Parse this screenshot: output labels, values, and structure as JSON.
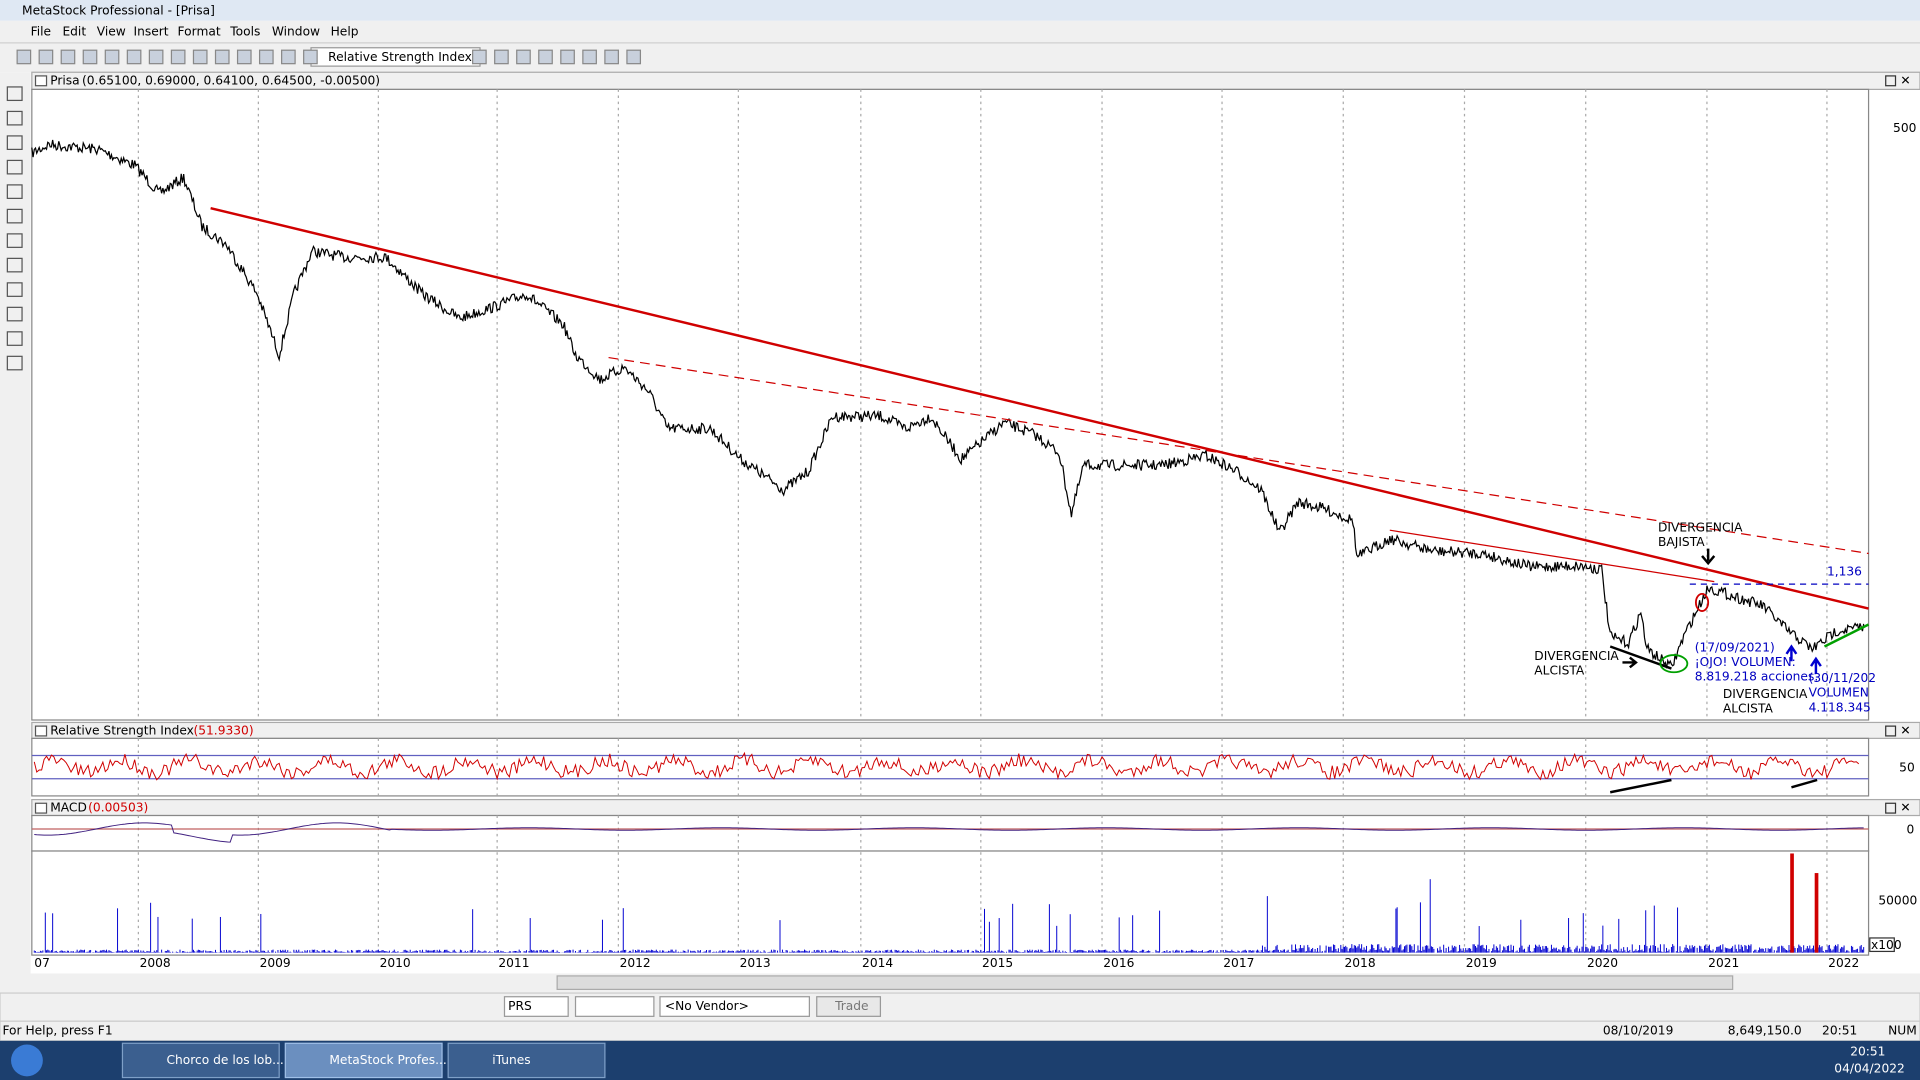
{
  "window": {
    "title": "MetaStock Professional - [Prisa]"
  },
  "menu": [
    "File",
    "Edit",
    "View",
    "Insert",
    "Format",
    "Tools",
    "Window",
    "Help"
  ],
  "toolbar": {
    "indicator": "Relative Strength Index"
  },
  "price_panel": {
    "name": "Prisa",
    "values": "(0.65100, 0.69000, 0.64100, 0.64500, -0.00500)",
    "axis_label": "500",
    "annotations": {
      "bearish": [
        "DIVERGENCIA",
        "BAJISTA"
      ],
      "level": "1,136",
      "bullish_left": [
        "DIVERGENCIA",
        "ALCISTA"
      ],
      "note1": [
        "(17/09/2021)",
        "¡OJO! VOLUMEN:",
        "8.819.218 acciones."
      ],
      "note2": [
        "(30/11/202",
        "VOLUMEN",
        "4.118.345"
      ],
      "bullish_right": [
        "DIVERGENCIA",
        "ALCISTA"
      ]
    }
  },
  "rsi_panel": {
    "name": "Relative Strength Index",
    "value": "(51.9330)",
    "axis_label": "50"
  },
  "macd_panel": {
    "name": "MACD",
    "value": "(0.00503)",
    "axis_label": "0"
  },
  "volume_panel": {
    "axis_label": "50000",
    "scale": "x100"
  },
  "years": [
    "07",
    "2008",
    "2009",
    "2010",
    "2011",
    "2012",
    "2013",
    "2014",
    "2015",
    "2016",
    "2017",
    "2018",
    "2019",
    "2020",
    "2021",
    "2022"
  ],
  "bottom_toolbar": {
    "symbol": "PRS",
    "vendor": "<No Vendor>",
    "trade": "Trade"
  },
  "status": {
    "help": "For Help, press F1",
    "date": "08/10/2019",
    "value": "8,649,150.0",
    "time": "20:51",
    "mode": "NUM"
  },
  "taskbar": {
    "items": [
      "Chorco de los lob...",
      "MetaStock Profes...",
      "iTunes"
    ],
    "time": "20:51",
    "date": "04/04/2022"
  }
}
